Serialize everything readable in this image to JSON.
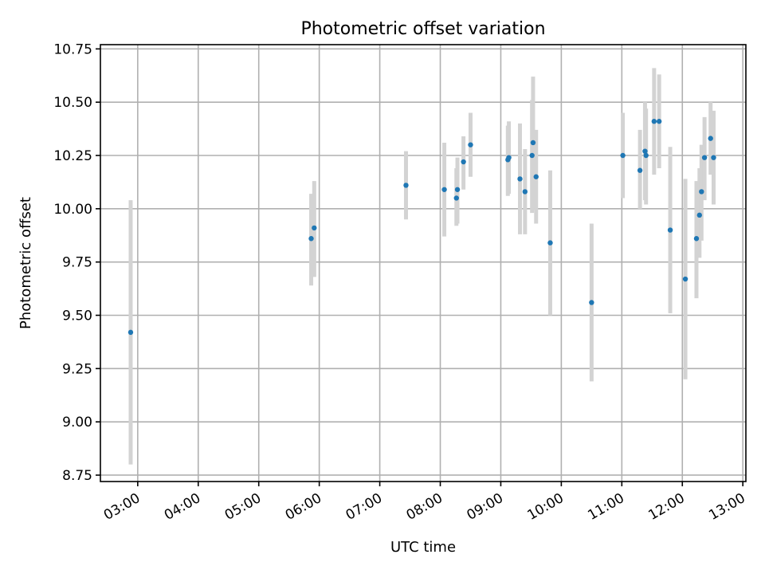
{
  "chart_data": {
    "type": "scatter",
    "title": "Photometric offset variation",
    "xlabel": "UTC time",
    "ylabel": "Photometric offset",
    "x_axis_type": "time",
    "xlim": [
      "02:23",
      "13:03"
    ],
    "ylim": [
      8.72,
      10.77
    ],
    "x_ticks": [
      "03:00",
      "04:00",
      "05:00",
      "06:00",
      "07:00",
      "08:00",
      "09:00",
      "10:00",
      "11:00",
      "12:00",
      "13:00"
    ],
    "y_ticks": [
      8.75,
      9.0,
      9.25,
      9.5,
      9.75,
      10.0,
      10.25,
      10.5,
      10.75
    ],
    "y_tick_labels": [
      "8.75",
      "9.00",
      "9.25",
      "9.50",
      "9.75",
      "10.00",
      "10.25",
      "10.50",
      "10.75"
    ],
    "grid": true,
    "x_tick_label_rotation": 30,
    "marker_color": "#1f77b4",
    "errorbar_color": "#d3d3d3",
    "points": [
      {
        "x": "02:53",
        "y": 9.42,
        "low": 8.8,
        "high": 10.04
      },
      {
        "x": "05:52",
        "y": 9.86,
        "low": 9.64,
        "high": 10.07
      },
      {
        "x": "05:55",
        "y": 9.91,
        "low": 9.68,
        "high": 10.13
      },
      {
        "x": "07:26",
        "y": 10.11,
        "low": 9.95,
        "high": 10.27
      },
      {
        "x": "08:04",
        "y": 10.09,
        "low": 9.87,
        "high": 10.31
      },
      {
        "x": "08:16",
        "y": 10.05,
        "low": 9.92,
        "high": 10.19
      },
      {
        "x": "08:17",
        "y": 10.09,
        "low": 9.93,
        "high": 10.24
      },
      {
        "x": "08:23",
        "y": 10.22,
        "low": 10.09,
        "high": 10.34
      },
      {
        "x": "08:30",
        "y": 10.3,
        "low": 10.15,
        "high": 10.45
      },
      {
        "x": "09:07",
        "y": 10.23,
        "low": 10.06,
        "high": 10.39
      },
      {
        "x": "09:08",
        "y": 10.24,
        "low": 10.07,
        "high": 10.41
      },
      {
        "x": "09:19",
        "y": 10.14,
        "low": 9.88,
        "high": 10.4
      },
      {
        "x": "09:24",
        "y": 10.08,
        "low": 9.88,
        "high": 10.28
      },
      {
        "x": "09:31",
        "y": 10.25,
        "low": 9.98,
        "high": 10.51
      },
      {
        "x": "09:32",
        "y": 10.31,
        "low": 10.0,
        "high": 10.62
      },
      {
        "x": "09:35",
        "y": 10.15,
        "low": 9.93,
        "high": 10.37
      },
      {
        "x": "09:49",
        "y": 9.84,
        "low": 9.5,
        "high": 10.18
      },
      {
        "x": "10:30",
        "y": 9.56,
        "low": 9.19,
        "high": 9.93
      },
      {
        "x": "11:01",
        "y": 10.25,
        "low": 10.05,
        "high": 10.45
      },
      {
        "x": "11:18",
        "y": 10.18,
        "low": 10.0,
        "high": 10.37
      },
      {
        "x": "11:23",
        "y": 10.27,
        "low": 10.04,
        "high": 10.5
      },
      {
        "x": "11:24",
        "y": 10.25,
        "low": 10.02,
        "high": 10.47
      },
      {
        "x": "11:32",
        "y": 10.41,
        "low": 10.16,
        "high": 10.66
      },
      {
        "x": "11:37",
        "y": 10.41,
        "low": 10.19,
        "high": 10.63
      },
      {
        "x": "11:48",
        "y": 9.9,
        "low": 9.51,
        "high": 10.29
      },
      {
        "x": "12:03",
        "y": 9.67,
        "low": 9.2,
        "high": 10.14
      },
      {
        "x": "12:14",
        "y": 9.86,
        "low": 9.58,
        "high": 10.13
      },
      {
        "x": "12:17",
        "y": 9.97,
        "low": 9.77,
        "high": 10.19
      },
      {
        "x": "12:19",
        "y": 10.08,
        "low": 9.85,
        "high": 10.3
      },
      {
        "x": "12:22",
        "y": 10.24,
        "low": 10.04,
        "high": 10.43
      },
      {
        "x": "12:28",
        "y": 10.33,
        "low": 10.16,
        "high": 10.5
      },
      {
        "x": "12:31",
        "y": 10.24,
        "low": 10.02,
        "high": 10.46
      }
    ]
  }
}
